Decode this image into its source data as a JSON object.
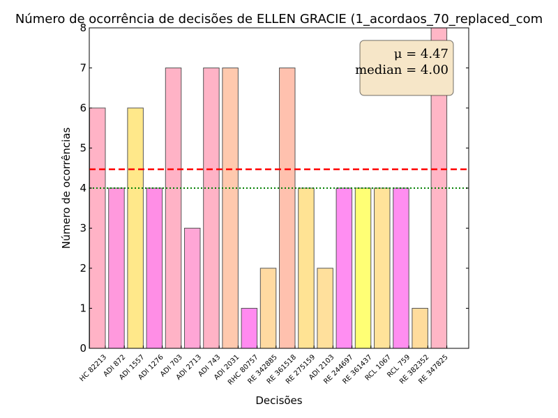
{
  "chart_data": {
    "type": "bar",
    "title": "Número de ocorrência de decisões de ELLEN GRACIE (1_acordaos_70_replaced_com",
    "xlabel": "Decisões",
    "ylabel": "Número de ocorrências",
    "ylim": [
      0,
      8
    ],
    "yticks": [
      "0",
      "1",
      "2",
      "3",
      "4",
      "5",
      "6",
      "7",
      "8"
    ],
    "categories": [
      "HC 82213",
      "ADI 872",
      "ADI 1557",
      "ADI 1276",
      "ADI 703",
      "ADI 2713",
      "ADI 743",
      "ADI 2031",
      "RHC 80757",
      "RE 342885",
      "RE 361518",
      "RE 275159",
      "ADI 2103",
      "RE 244697",
      "RE 361437",
      "RCL 1067",
      "RCL 759",
      "RE 382352",
      "RE 347825"
    ],
    "values": [
      6,
      4,
      6,
      4,
      7,
      3,
      7,
      7,
      1,
      2,
      7,
      4,
      2,
      4,
      4,
      4,
      4,
      1,
      8
    ],
    "colors": [
      "#ffb3c6",
      "#ff99dd",
      "#ffe88a",
      "#ff8ee6",
      "#ffb3c6",
      "#ffa6d6",
      "#ffb3c6",
      "#ffc9ae",
      "#ff8af0",
      "#ffdaa1",
      "#ffc1ae",
      "#ffe394",
      "#ffe09c",
      "#ff8ef2",
      "#ffff75",
      "#ffe39a",
      "#ff8ef0",
      "#ffdc9c",
      "#ffb6c6"
    ],
    "mean": 4.47,
    "median": 4.0,
    "mean_line": {
      "color": "#ff0000",
      "style": "dashed"
    },
    "median_line": {
      "color": "#008000",
      "style": "dotted"
    },
    "stats_box": {
      "mean_text": "μ = 4.47",
      "median_text": "median = 4.00",
      "placement": "top-right",
      "background": "#f6e6c8"
    },
    "grid": false
  }
}
